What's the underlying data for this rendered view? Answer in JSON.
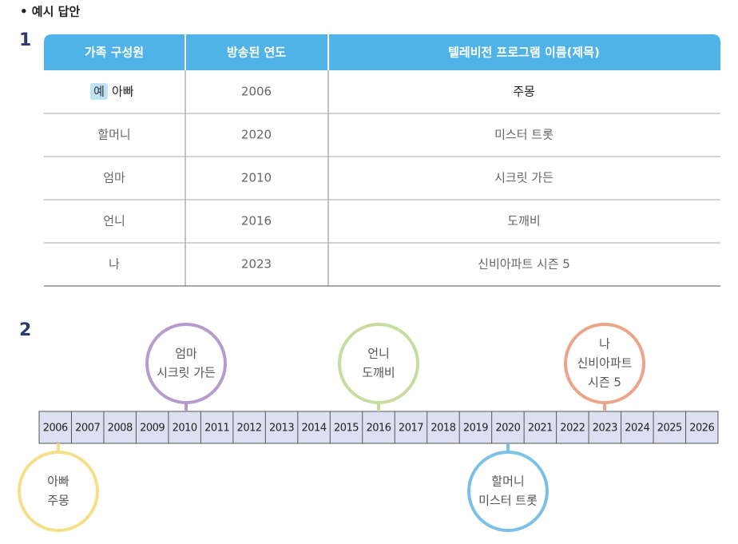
{
  "heading": "• 예시 답안",
  "section1": {
    "number": "1",
    "table": {
      "headers": [
        "가족 구성원",
        "방송된 연도",
        "텔레비전 프로그램 이름(제목)"
      ],
      "example_badge": "예",
      "rows": [
        [
          "아빠",
          "2006",
          "주몽"
        ],
        [
          "할머니",
          "2020",
          "미스터 트롯"
        ],
        [
          "엄마",
          "2010",
          "시크릿 가든"
        ],
        [
          "언니",
          "2016",
          "도깨비"
        ],
        [
          "나",
          "2023",
          "신비아파트 시즌 5"
        ]
      ]
    }
  },
  "section2": {
    "number": "2",
    "timeline": {
      "years": [
        "2006",
        "2007",
        "2008",
        "2009",
        "2010",
        "2011",
        "2012",
        "2013",
        "2014",
        "2015",
        "2016",
        "2017",
        "2018",
        "2019",
        "2020",
        "2021",
        "2022",
        "2023",
        "2024",
        "2025",
        "2026"
      ]
    },
    "circles": [
      {
        "lines": [
          "엄마",
          "시크릿 가든"
        ]
      },
      {
        "lines": [
          "언니",
          "도깨비"
        ]
      },
      {
        "lines": [
          "나",
          "신비아파트",
          "시즌 5"
        ]
      },
      {
        "lines": [
          "아빠",
          "주몽"
        ]
      },
      {
        "lines": [
          "할머니",
          "미스터 트롯"
        ]
      }
    ]
  }
}
